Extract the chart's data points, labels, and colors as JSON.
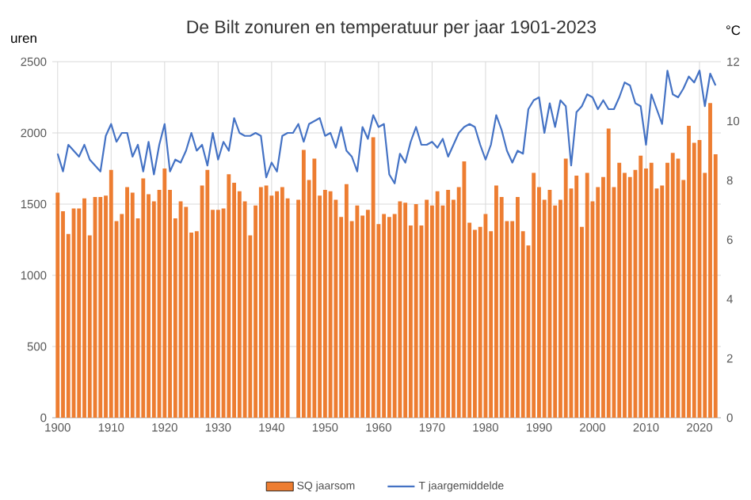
{
  "chart_data": {
    "type": "bar",
    "title": "De Bilt zonuren en temperatuur per jaar 1901-2023",
    "ylabel": "uren",
    "y2label": "°C",
    "x": [
      1900,
      1901,
      1902,
      1903,
      1904,
      1905,
      1906,
      1907,
      1908,
      1909,
      1910,
      1911,
      1912,
      1913,
      1914,
      1915,
      1916,
      1917,
      1918,
      1919,
      1920,
      1921,
      1922,
      1923,
      1924,
      1925,
      1926,
      1927,
      1928,
      1929,
      1930,
      1931,
      1932,
      1933,
      1934,
      1935,
      1936,
      1937,
      1938,
      1939,
      1940,
      1941,
      1942,
      1943,
      1944,
      1945,
      1946,
      1947,
      1948,
      1949,
      1950,
      1951,
      1952,
      1953,
      1954,
      1955,
      1956,
      1957,
      1958,
      1959,
      1960,
      1961,
      1962,
      1963,
      1964,
      1965,
      1966,
      1967,
      1968,
      1969,
      1970,
      1971,
      1972,
      1973,
      1974,
      1975,
      1976,
      1977,
      1978,
      1979,
      1980,
      1981,
      1982,
      1983,
      1984,
      1985,
      1986,
      1987,
      1988,
      1989,
      1990,
      1991,
      1992,
      1993,
      1994,
      1995,
      1996,
      1997,
      1998,
      1999,
      2000,
      2001,
      2002,
      2003,
      2004,
      2005,
      2006,
      2007,
      2008,
      2009,
      2010,
      2011,
      2012,
      2013,
      2014,
      2015,
      2016,
      2017,
      2018,
      2019,
      2020,
      2021,
      2022,
      2023
    ],
    "series": [
      {
        "name": "SQ jaarsom",
        "color": "#ed7d31",
        "values": [
          1580,
          1450,
          1290,
          1470,
          1470,
          1540,
          1280,
          1550,
          1550,
          1560,
          1740,
          1380,
          1430,
          1620,
          1580,
          1400,
          1680,
          1570,
          1520,
          1600,
          1750,
          1600,
          1400,
          1520,
          1480,
          1300,
          1310,
          1630,
          1740,
          1460,
          1460,
          1470,
          1710,
          1650,
          1590,
          1520,
          1280,
          1490,
          1620,
          1630,
          1560,
          1590,
          1620,
          1540,
          null,
          1530,
          1880,
          1670,
          1820,
          1560,
          1600,
          1590,
          1530,
          1410,
          1640,
          1380,
          1490,
          1420,
          1460,
          1970,
          1360,
          1430,
          1410,
          1430,
          1520,
          1510,
          1350,
          1500,
          1350,
          1530,
          1490,
          1590,
          1490,
          1600,
          1530,
          1620,
          1800,
          1370,
          1320,
          1340,
          1430,
          1310,
          1630,
          1550,
          1380,
          1380,
          1550,
          1310,
          1210,
          1720,
          1620,
          1530,
          1600,
          1490,
          1530,
          1820,
          1610,
          1700,
          1340,
          1720,
          1520,
          1620,
          1690,
          2030,
          1620,
          1790,
          1720,
          1690,
          1740,
          1840,
          1750,
          1790,
          1610,
          1630,
          1790,
          1860,
          1820,
          1670,
          2050,
          1930,
          1950,
          1720,
          2210,
          1850
        ]
      },
      {
        "name": "T jaargemiddelde",
        "type": "line",
        "axis": "y2",
        "color": "#4472c4",
        "values": [
          8.9,
          8.3,
          9.2,
          9.0,
          8.8,
          9.2,
          8.7,
          8.5,
          8.3,
          9.5,
          9.9,
          9.3,
          9.6,
          9.6,
          8.8,
          9.2,
          8.3,
          9.3,
          8.2,
          9.2,
          9.9,
          8.3,
          8.7,
          8.6,
          9.0,
          9.6,
          9.0,
          9.2,
          8.5,
          9.6,
          8.7,
          9.3,
          9.0,
          10.1,
          9.6,
          9.5,
          9.5,
          9.6,
          9.5,
          8.1,
          8.6,
          8.3,
          9.5,
          9.6,
          9.6,
          9.9,
          9.3,
          9.9,
          10.0,
          10.1,
          9.5,
          9.6,
          9.1,
          9.8,
          9.0,
          8.8,
          8.3,
          9.8,
          9.4,
          10.2,
          9.8,
          9.9,
          8.2,
          7.9,
          8.9,
          8.6,
          9.3,
          9.8,
          9.2,
          9.2,
          9.3,
          9.1,
          9.4,
          8.8,
          9.2,
          9.6,
          9.8,
          9.9,
          9.8,
          9.2,
          8.7,
          9.2,
          10.2,
          9.7,
          9.0,
          8.6,
          9.0,
          8.9,
          10.4,
          10.7,
          10.8,
          9.6,
          10.6,
          9.8,
          10.7,
          10.5,
          8.5,
          10.3,
          10.5,
          10.9,
          10.8,
          10.4,
          10.7,
          10.4,
          10.4,
          10.8,
          11.3,
          11.2,
          10.6,
          10.5,
          9.2,
          10.9,
          10.4,
          9.9,
          11.7,
          10.9,
          10.8,
          11.1,
          11.5,
          11.3,
          11.7,
          10.5,
          11.6,
          11.2
        ]
      }
    ],
    "xlim": [
      1899,
      2024
    ],
    "xticks": [
      1900,
      1910,
      1920,
      1930,
      1940,
      1950,
      1960,
      1970,
      1980,
      1990,
      2000,
      2010,
      2020
    ],
    "ylim": [
      0,
      2500
    ],
    "yticks": [
      0,
      500,
      1000,
      1500,
      2000,
      2500
    ],
    "y2lim": [
      0,
      12
    ],
    "y2ticks": [
      0,
      2,
      4,
      6,
      8,
      10,
      12
    ],
    "grid": true,
    "legend": "bottom"
  }
}
